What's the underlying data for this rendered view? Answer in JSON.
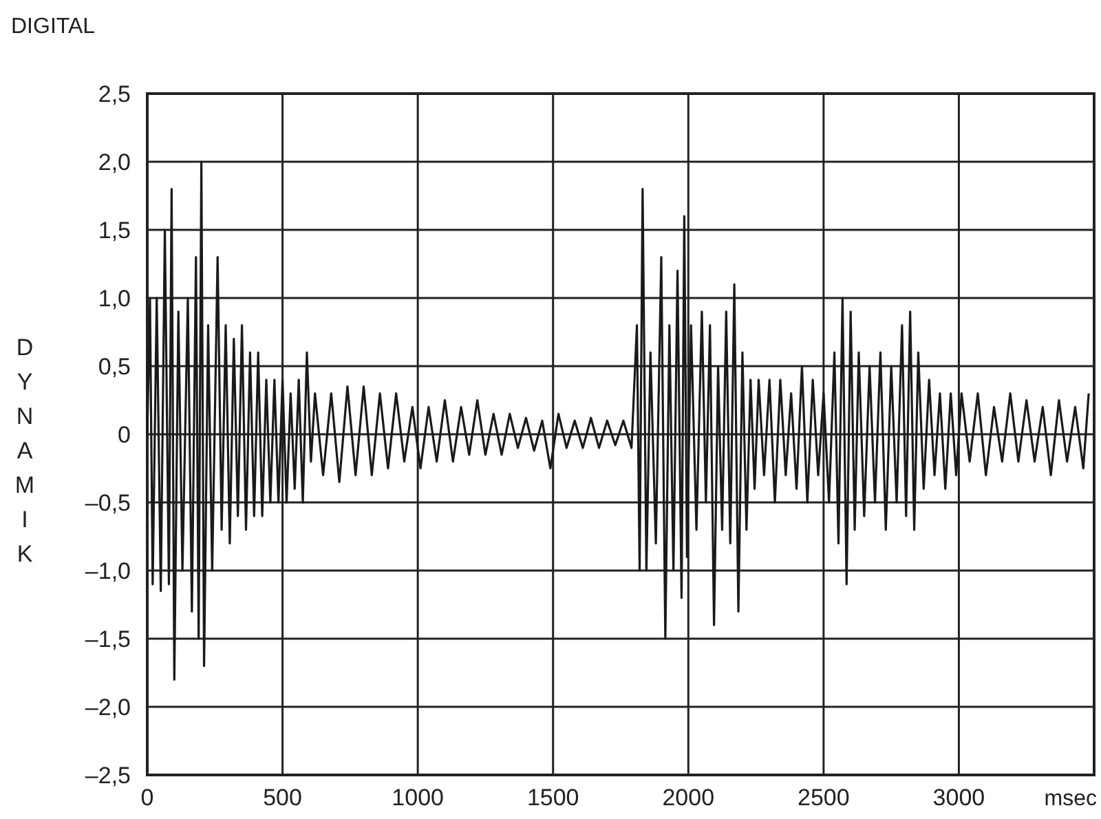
{
  "chart_data": {
    "type": "line",
    "title": "DIGITAL",
    "xlabel": "msec",
    "ylabel": "DYNAMIK",
    "xlim": [
      0,
      3500
    ],
    "ylim": [
      -2.5,
      2.5
    ],
    "xticks": [
      0,
      500,
      1000,
      1500,
      2000,
      2500,
      3000
    ],
    "yticks": [
      {
        "value": 2.5,
        "label": "2,5"
      },
      {
        "value": 2,
        "label": "2,0"
      },
      {
        "value": 1.5,
        "label": "1,5"
      },
      {
        "value": 1,
        "label": "1,0"
      },
      {
        "value": 0.5,
        "label": "0,5"
      },
      0,
      {
        "value": -0.5,
        "label": "–0,5"
      },
      {
        "value": -1,
        "label": "–1,0"
      },
      {
        "value": -1.5,
        "label": "–1,5"
      },
      {
        "value": -2,
        "label": "–2,0"
      },
      {
        "value": -2.5,
        "label": "–2,5"
      }
    ],
    "grid": true,
    "marker": "none",
    "line_style": "solid",
    "series": [
      {
        "color": "#1a1a1a",
        "x": [
          0,
          10,
          20,
          35,
          50,
          65,
          80,
          90,
          100,
          115,
          130,
          150,
          165,
          180,
          190,
          200,
          210,
          225,
          240,
          260,
          275,
          290,
          305,
          320,
          335,
          350,
          365,
          380,
          395,
          410,
          425,
          440,
          455,
          470,
          485,
          500,
          515,
          530,
          545,
          560,
          575,
          590,
          605,
          620,
          650,
          680,
          710,
          740,
          770,
          800,
          830,
          860,
          890,
          920,
          950,
          980,
          1010,
          1040,
          1070,
          1100,
          1130,
          1160,
          1190,
          1220,
          1250,
          1280,
          1310,
          1340,
          1370,
          1400,
          1430,
          1460,
          1490,
          1520,
          1550,
          1580,
          1610,
          1640,
          1670,
          1700,
          1730,
          1760,
          1790,
          1810,
          1820,
          1831,
          1845,
          1860,
          1880,
          1900,
          1915,
          1930,
          1945,
          1960,
          1975,
          1985,
          1995,
          2010,
          2030,
          2050,
          2065,
          2080,
          2095,
          2110,
          2125,
          2140,
          2155,
          2170,
          2185,
          2200,
          2215,
          2230,
          2245,
          2260,
          2280,
          2300,
          2320,
          2340,
          2360,
          2380,
          2400,
          2420,
          2440,
          2460,
          2480,
          2500,
          2520,
          2540,
          2555,
          2570,
          2585,
          2600,
          2615,
          2630,
          2650,
          2670,
          2690,
          2710,
          2730,
          2750,
          2770,
          2790,
          2805,
          2820,
          2835,
          2850,
          2870,
          2890,
          2910,
          2930,
          2950,
          2970,
          2990,
          3010,
          3040,
          3070,
          3100,
          3130,
          3160,
          3190,
          3220,
          3250,
          3280,
          3310,
          3340,
          3370,
          3400,
          3430,
          3460,
          3480
        ],
        "values": [
          0,
          1.0,
          -1.1,
          1.0,
          -1.15,
          1.5,
          -1.1,
          1.8,
          -1.8,
          0.9,
          -1.0,
          1.0,
          -1.3,
          1.3,
          -1.5,
          2.0,
          -1.7,
          0.8,
          -1.0,
          1.3,
          -0.7,
          0.8,
          -0.8,
          0.7,
          -0.6,
          0.8,
          -0.7,
          0.6,
          -0.6,
          0.6,
          -0.6,
          0.4,
          -0.5,
          0.4,
          -0.5,
          0.4,
          -0.5,
          0.3,
          -0.4,
          0.4,
          -0.5,
          0.6,
          -0.2,
          0.3,
          -0.3,
          0.3,
          -0.35,
          0.35,
          -0.3,
          0.35,
          -0.3,
          0.3,
          -0.25,
          0.3,
          -0.2,
          0.2,
          -0.25,
          0.2,
          -0.2,
          0.25,
          -0.2,
          0.2,
          -0.15,
          0.25,
          -0.15,
          0.15,
          -0.15,
          0.15,
          -0.1,
          0.12,
          -0.12,
          0.1,
          -0.25,
          0.15,
          -0.1,
          0.1,
          -0.1,
          0.12,
          -0.1,
          0.1,
          -0.08,
          0.1,
          -0.1,
          0.8,
          -1.0,
          1.8,
          -1.0,
          0.6,
          -0.8,
          1.3,
          -1.5,
          0.8,
          -1.0,
          1.2,
          -1.2,
          1.6,
          -0.9,
          0.8,
          -0.7,
          0.9,
          -0.5,
          0.8,
          -1.4,
          0.5,
          -0.7,
          0.9,
          -0.8,
          1.1,
          -1.3,
          0.6,
          -0.7,
          0.4,
          -0.4,
          0.4,
          -0.3,
          0.4,
          -0.5,
          0.4,
          -0.3,
          0.3,
          -0.4,
          0.5,
          -0.5,
          0.4,
          -0.3,
          0.3,
          -0.5,
          0.6,
          -0.8,
          1.0,
          -1.1,
          0.9,
          -0.7,
          0.6,
          -0.6,
          0.5,
          -0.5,
          0.6,
          -0.7,
          0.5,
          -0.5,
          0.8,
          -0.6,
          0.9,
          -0.7,
          0.6,
          -0.4,
          0.4,
          -0.3,
          0.3,
          -0.4,
          0.3,
          -0.3,
          0.3,
          -0.2,
          0.3,
          -0.3,
          0.2,
          -0.2,
          0.3,
          -0.2,
          0.25,
          -0.2,
          0.2,
          -0.3,
          0.25,
          -0.2,
          0.2,
          -0.25,
          0.3
        ]
      }
    ]
  }
}
